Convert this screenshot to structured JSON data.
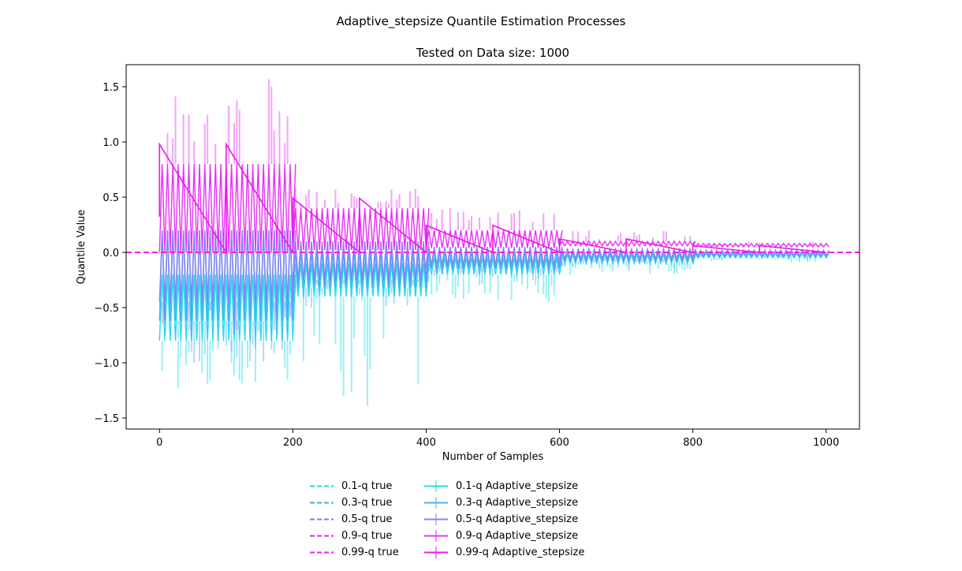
{
  "chart_data": {
    "type": "line",
    "title": "Adaptive_stepsize Quantile Estimation Processes",
    "subtitle": "Tested on Data size: 1000",
    "xlabel": "Number of Samples",
    "ylabel": "Quantile Value",
    "xlim": [
      -50,
      1050
    ],
    "ylim": [
      -1.6,
      1.7
    ],
    "xticks": [
      0,
      200,
      400,
      600,
      800,
      1000
    ],
    "xtick_labels": [
      "0",
      "200",
      "400",
      "600",
      "800",
      "1000"
    ],
    "yticks": [
      -1.5,
      -1.0,
      -0.5,
      0.0,
      0.5,
      1.0,
      1.5
    ],
    "ytick_labels": [
      "−1.5",
      "−1.0",
      "−0.5",
      "0.0",
      "0.5",
      "1.0",
      "1.5"
    ],
    "grid": false,
    "legend_position": "below",
    "true_lines": [
      {
        "name": "0.1-q true",
        "value": 0.0,
        "color": "#1ad6ee"
      },
      {
        "name": "0.3-q true",
        "value": 0.0,
        "color": "#45a8f0"
      },
      {
        "name": "0.5-q true",
        "value": 0.0,
        "color": "#8a78ee"
      },
      {
        "name": "0.9-q true",
        "value": 0.0,
        "color": "#e020f5"
      },
      {
        "name": "0.99-q true",
        "value": 0.0,
        "color": "#f51af5"
      }
    ],
    "series": [
      {
        "name": "0.1-q Adaptive_stepsize",
        "color": "#22dcee",
        "block_size": 200,
        "block_starts": [
          0,
          200,
          400,
          600,
          800
        ],
        "block_levels": [
          -0.8,
          -0.4,
          -0.2,
          -0.1,
          -0.05
        ],
        "block_highs": [
          -0.2,
          -0.1,
          -0.05,
          -0.02,
          -0.01
        ],
        "cycle": 8,
        "error_extremes": [
          -1.23,
          -1.4,
          -0.45,
          -0.2,
          -0.1
        ]
      },
      {
        "name": "0.3-q Adaptive_stepsize",
        "color": "#4bb0fa",
        "block_size": 200,
        "block_starts": [
          0,
          200,
          400,
          600,
          800
        ],
        "block_levels": [
          -0.62,
          -0.32,
          -0.15,
          -0.08,
          -0.04
        ],
        "block_highs": [
          0.2,
          0.0,
          0.0,
          0.0,
          0.0
        ],
        "cycle": 8,
        "error_extremes": [
          -1.0,
          -0.5,
          -0.3,
          -0.15,
          -0.08
        ]
      },
      {
        "name": "0.5-q Adaptive_stepsize",
        "color": "#8c80ee",
        "block_size": 200,
        "block_starts": [
          0,
          200,
          400,
          600,
          800
        ],
        "block_levels": [
          -0.45,
          -0.25,
          -0.12,
          -0.06,
          -0.03
        ],
        "block_highs": [
          0.2,
          0.1,
          0.05,
          0.03,
          0.02
        ],
        "cycle": 8,
        "error_extremes": [
          -0.75,
          -0.35,
          -0.2,
          -0.1,
          -0.05
        ]
      },
      {
        "name": "0.9-q Adaptive_stepsize",
        "color": "#e830f8",
        "block_size": 200,
        "block_starts": [
          0,
          200,
          400,
          600,
          800
        ],
        "block_levels": [
          0.8,
          0.4,
          0.2,
          0.1,
          0.05
        ],
        "block_highs": [
          0.8,
          0.4,
          0.2,
          0.1,
          0.05
        ],
        "cycle": 8,
        "error_extremes": [
          1.57,
          0.6,
          0.4,
          0.2,
          0.1
        ]
      },
      {
        "name": "0.99-q Adaptive_stepsize",
        "color": "#f014f0",
        "block_size": 100,
        "block_starts": [
          0,
          100,
          200,
          300,
          400,
          500,
          600,
          700,
          800,
          900
        ],
        "block_peaks": [
          0.98,
          0.98,
          0.49,
          0.49,
          0.245,
          0.245,
          0.122,
          0.122,
          0.06,
          0.06
        ]
      }
    ]
  }
}
